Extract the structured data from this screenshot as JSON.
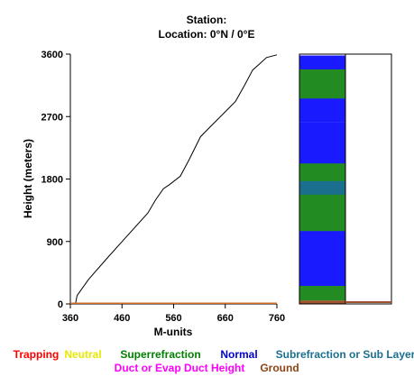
{
  "chart_data": {
    "type": "line",
    "title": "Station:",
    "subtitle": "Location:   0°N /   0°E",
    "xlabel": "M-units",
    "ylabel": "Height (meters)",
    "xlim": [
      360,
      760
    ],
    "ylim": [
      0,
      3600
    ],
    "x_ticks": [
      "360",
      "460",
      "560",
      "660",
      "760"
    ],
    "y_ticks": [
      "0",
      "900",
      "1800",
      "2700",
      "3600"
    ],
    "grid": false,
    "series": [
      {
        "color": "#000000",
        "points": [
          [
            370,
            0
          ],
          [
            373,
            120
          ],
          [
            395,
            350
          ],
          [
            430,
            650
          ],
          [
            470,
            980
          ],
          [
            510,
            1310
          ],
          [
            525,
            1500
          ],
          [
            540,
            1660
          ],
          [
            552,
            1720
          ],
          [
            573,
            1840
          ],
          [
            590,
            2080
          ],
          [
            612,
            2410
          ],
          [
            632,
            2560
          ],
          [
            660,
            2770
          ],
          [
            680,
            2920
          ],
          [
            698,
            3160
          ],
          [
            713,
            3370
          ],
          [
            728,
            3470
          ],
          [
            740,
            3550
          ],
          [
            760,
            3590
          ]
        ]
      },
      {
        "color": "#d2691e",
        "points": [
          [
            360,
            10
          ],
          [
            760,
            10
          ]
        ]
      }
    ],
    "layer_column": {
      "layers": [
        {
          "from": 0,
          "to": 50,
          "type": "Ground",
          "color": "#a0522d"
        },
        {
          "from": 50,
          "to": 260,
          "type": "Superrefraction",
          "color": "#228b22"
        },
        {
          "from": 260,
          "to": 2620,
          "type": "Normal",
          "color": "#1a1aff"
        },
        {
          "from": 1700,
          "to": 2025,
          "type": "Superrefraction",
          "color": "#228b22"
        },
        {
          "from": 1050,
          "to": 1740,
          "type": "Superrefraction",
          "color": "#228b22"
        },
        {
          "from": 1575,
          "to": 1770,
          "type": "Subrefraction or Sub Layer",
          "color": "#1a6f8f"
        },
        {
          "from": 2620,
          "to": 3580,
          "type": "Normal",
          "color": "#1a1aff"
        },
        {
          "from": 2960,
          "to": 3380,
          "type": "Superrefraction",
          "color": "#228b22"
        }
      ],
      "ground_line_color": "#a0522d"
    },
    "legend": [
      {
        "label": "Trapping",
        "color": "#ff0000"
      },
      {
        "label": "Neutral",
        "color": "#e8e800"
      },
      {
        "label": "Superrefraction",
        "color": "#008000"
      },
      {
        "label": "Normal",
        "color": "#0000cc"
      },
      {
        "label": "Subrefraction or Sub Layer",
        "color": "#1a6f8f"
      },
      {
        "label": "Duct or Evap Duct Height",
        "color": "#ff00ff"
      },
      {
        "label": "Ground",
        "color": "#8b4513"
      }
    ],
    "legend_position": "bottom"
  }
}
